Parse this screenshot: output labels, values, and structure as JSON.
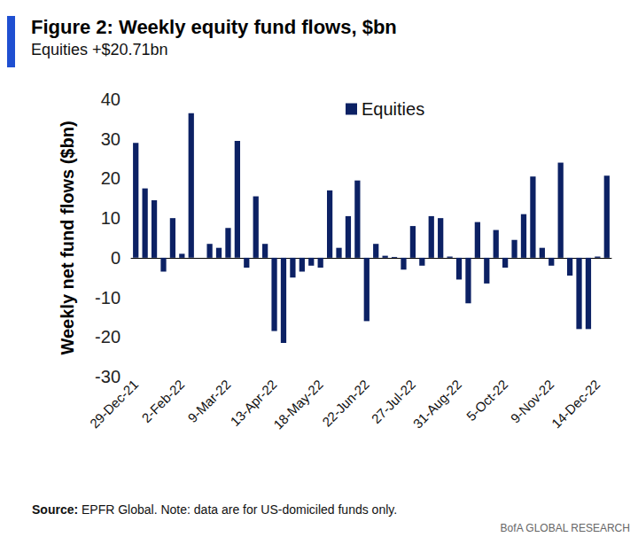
{
  "chart_data": {
    "type": "bar",
    "title": "Figure 2: Weekly equity fund flows, $bn",
    "subtitle": "Equities +$20.71bn",
    "y_label": "Weekly net fund flows ($bn)",
    "annotations": [
      "Source:",
      "EPFR Global. Note: data are for US-domiciled funds only.",
      "BofA GLOBAL RESEARCH"
    ],
    "categories": [
      "29-Dec-21",
      null,
      null,
      null,
      null,
      "2-Feb-22",
      null,
      null,
      null,
      null,
      "9-Mar-22",
      null,
      null,
      null,
      null,
      "13-Apr-22",
      null,
      null,
      null,
      null,
      "18-May-22",
      null,
      null,
      null,
      null,
      "22-Jun-22",
      null,
      null,
      null,
      null,
      "27-Jul-22",
      null,
      null,
      null,
      null,
      "31-Aug-22",
      null,
      null,
      null,
      null,
      "5-Oct-22",
      null,
      null,
      null,
      null,
      "9-Nov-22",
      null,
      null,
      null,
      null,
      "14-Dec-22",
      null
    ],
    "series": [
      {
        "name": "Equities",
        "color": "#0c2164",
        "values": [
          29,
          17.5,
          14.5,
          -3.5,
          10,
          1,
          36.5,
          0,
          3.5,
          2.5,
          7.5,
          29.5,
          -2.5,
          15.5,
          3.5,
          -18.5,
          -21.5,
          -5,
          -3.5,
          -2,
          -2.5,
          17,
          2.5,
          10.5,
          19.5,
          -16,
          3.5,
          0.5,
          0.2,
          -3,
          8,
          -2,
          10.5,
          10,
          0.3,
          -5.5,
          -11.5,
          9,
          -6.5,
          7,
          -2.5,
          4.5,
          11,
          20.5,
          2.5,
          -2,
          24,
          -4.5,
          -18,
          -18,
          0.3,
          20.71
        ]
      }
    ],
    "ylim": [
      -30,
      40
    ],
    "yticks": [
      -30,
      -20,
      -10,
      0,
      10,
      20,
      30,
      40
    ],
    "grid": false,
    "legend": "top"
  }
}
